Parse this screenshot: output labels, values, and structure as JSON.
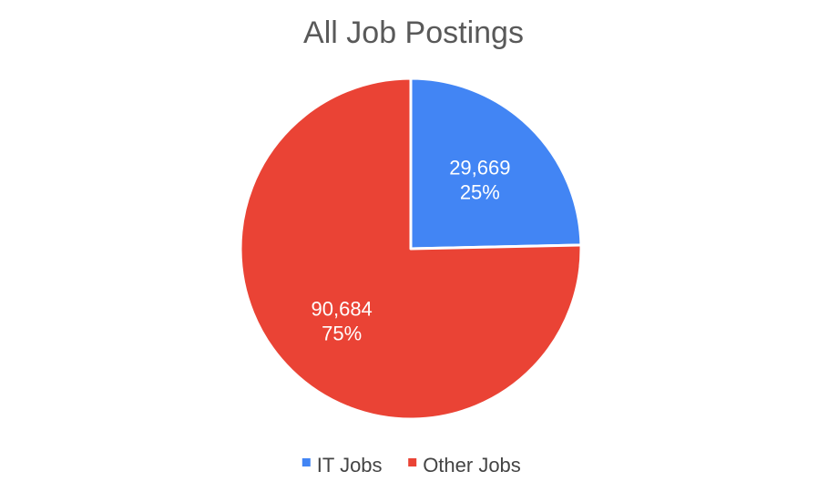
{
  "chart_data": {
    "type": "pie",
    "title": "All Job Postings",
    "categories": [
      "IT Jobs",
      "Other Jobs"
    ],
    "values": [
      29669,
      90684
    ],
    "value_labels": [
      "29,669",
      "90,684"
    ],
    "percent_labels": [
      "25%",
      "75%"
    ],
    "colors": [
      "#4285f4",
      "#ea4335"
    ],
    "slice_border_color": "#ffffff",
    "start_angle": "12 o'clock",
    "direction": "clockwise",
    "legend": {
      "placement": "bottom",
      "entries": [
        "IT Jobs",
        "Other Jobs"
      ]
    }
  }
}
